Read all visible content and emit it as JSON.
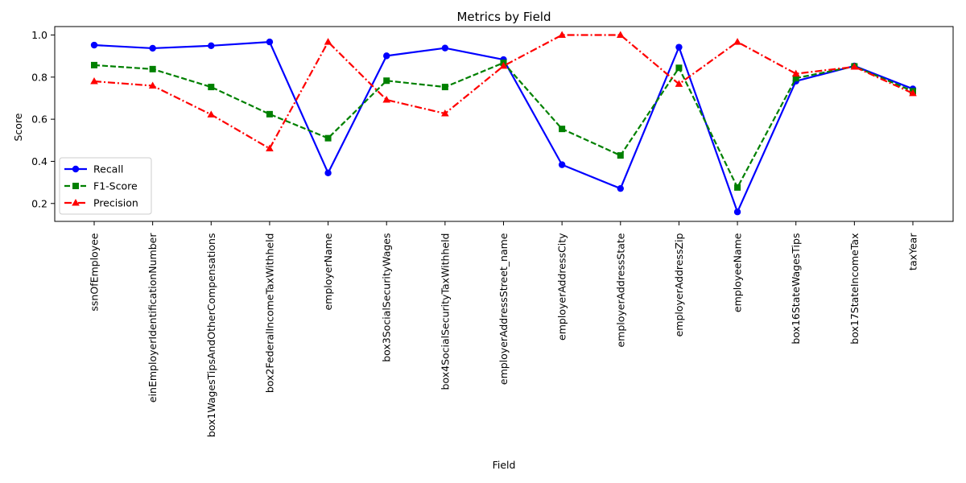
{
  "chart_data": {
    "type": "line",
    "title": "Metrics by Field",
    "xlabel": "Field",
    "ylabel": "Score",
    "ylim": [
      0.115,
      1.04
    ],
    "yticks": [
      "0.2",
      "0.4",
      "0.6",
      "0.8",
      "1.0"
    ],
    "grid": false,
    "legend_position": "lower-left",
    "categories": [
      "ssnOfEmployee",
      "einEmployerIdentificationNumber",
      "box1WagesTipsAndOtherCompensations",
      "box2FederalIncomeTaxWithheld",
      "employerName",
      "box3SocialSecurityWages",
      "box4SocialSecurityTaxWithheld",
      "employerAddressStreet_name",
      "employerAddressCity",
      "employerAddressState",
      "employerAddressZip",
      "employeeName",
      "box16StateWagesTips",
      "box17StateIncomeTax",
      "taxYear"
    ],
    "series": [
      {
        "name": "Recall",
        "color": "#0000ff",
        "line_style": "solid",
        "marker": "circle",
        "values": [
          0.952,
          0.937,
          0.949,
          0.967,
          0.345,
          0.901,
          0.938,
          0.883,
          0.384,
          0.271,
          0.942,
          0.16,
          0.781,
          0.853,
          0.744
        ]
      },
      {
        "name": "F1-Score",
        "color": "#008000",
        "line_style": "dashed",
        "marker": "square",
        "values": [
          0.857,
          0.838,
          0.753,
          0.624,
          0.51,
          0.783,
          0.753,
          0.868,
          0.554,
          0.428,
          0.844,
          0.276,
          0.795,
          0.851,
          0.733
        ]
      },
      {
        "name": "Precision",
        "color": "#ff0000",
        "line_style": "dashdot",
        "marker": "triangle",
        "values": [
          0.78,
          0.759,
          0.622,
          0.461,
          0.967,
          0.692,
          0.627,
          0.853,
          1.0,
          1.0,
          0.767,
          0.967,
          0.816,
          0.849,
          0.723
        ]
      }
    ]
  }
}
